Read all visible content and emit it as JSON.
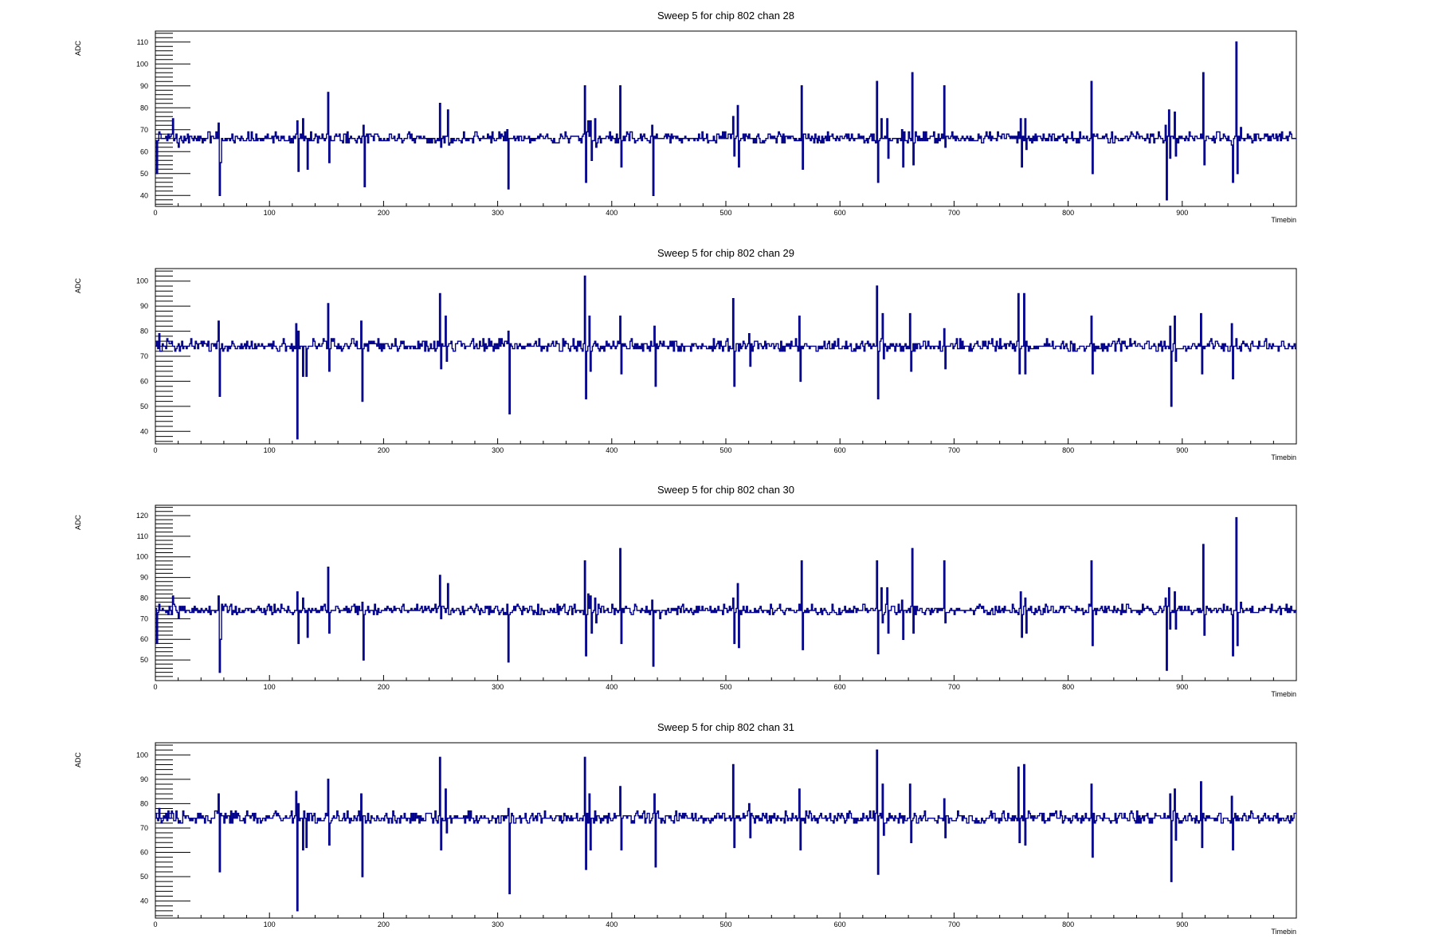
{
  "colors": {
    "trace": "#00008b",
    "frame": "#000000",
    "text": "#000000",
    "background": "#ffffff"
  },
  "chart_data": [
    {
      "type": "line",
      "title": "Sweep 5 for chip 802 chan 28",
      "xlabel": "Timebin",
      "ylabel": "ADC",
      "xlim": [
        0,
        1000
      ],
      "ylim": [
        35,
        115
      ],
      "xticks": [
        "0",
        "100",
        "200",
        "300",
        "400",
        "500",
        "600",
        "700",
        "800",
        "900"
      ],
      "yticks": [
        "40",
        "50",
        "60",
        "70",
        "80",
        "90",
        "100",
        "110"
      ],
      "baseline": 66,
      "spikes": [
        [
          1,
          50
        ],
        [
          3,
          69
        ],
        [
          15,
          75
        ],
        [
          20,
          62
        ],
        [
          55,
          73
        ],
        [
          56,
          40
        ],
        [
          57,
          55
        ],
        [
          124,
          74
        ],
        [
          125,
          51
        ],
        [
          129,
          75
        ],
        [
          133,
          52
        ],
        [
          151,
          87
        ],
        [
          152,
          55
        ],
        [
          182,
          72
        ],
        [
          183,
          44
        ],
        [
          249,
          82
        ],
        [
          250,
          62
        ],
        [
          256,
          79
        ],
        [
          257,
          63
        ],
        [
          308,
          70
        ],
        [
          309,
          43
        ],
        [
          376,
          90
        ],
        [
          377,
          46
        ],
        [
          379,
          74
        ],
        [
          381,
          74
        ],
        [
          382,
          56
        ],
        [
          385,
          75
        ],
        [
          386,
          62
        ],
        [
          407,
          90
        ],
        [
          408,
          53
        ],
        [
          435,
          72
        ],
        [
          436,
          40
        ],
        [
          442,
          66
        ],
        [
          506,
          76
        ],
        [
          507,
          58
        ],
        [
          510,
          81
        ],
        [
          511,
          53
        ],
        [
          566,
          90
        ],
        [
          567,
          52
        ],
        [
          632,
          92
        ],
        [
          633,
          46
        ],
        [
          636,
          75
        ],
        [
          637,
          66
        ],
        [
          641,
          75
        ],
        [
          642,
          57
        ],
        [
          654,
          70
        ],
        [
          655,
          53
        ],
        [
          663,
          96
        ],
        [
          664,
          54
        ],
        [
          691,
          90
        ],
        [
          692,
          62
        ],
        [
          758,
          75
        ],
        [
          759,
          53
        ],
        [
          762,
          75
        ],
        [
          763,
          61
        ],
        [
          820,
          92
        ],
        [
          821,
          50
        ],
        [
          885,
          72
        ],
        [
          886,
          38
        ],
        [
          888,
          79
        ],
        [
          889,
          57
        ],
        [
          893,
          78
        ],
        [
          894,
          58
        ],
        [
          918,
          96
        ],
        [
          919,
          54
        ],
        [
          943,
          63
        ],
        [
          944,
          46
        ],
        [
          947,
          110
        ],
        [
          948,
          50
        ],
        [
          951,
          71
        ]
      ]
    },
    {
      "type": "line",
      "title": "Sweep 5 for chip 802 chan 29",
      "xlabel": "Timebin",
      "ylabel": "ADC",
      "xlim": [
        0,
        1000
      ],
      "ylim": [
        35,
        105
      ],
      "xticks": [
        "0",
        "100",
        "200",
        "300",
        "400",
        "500",
        "600",
        "700",
        "800",
        "900"
      ],
      "yticks": [
        "40",
        "50",
        "60",
        "70",
        "80",
        "90",
        "100"
      ],
      "baseline": 74,
      "spikes": [
        [
          3,
          79
        ],
        [
          5,
          72
        ],
        [
          55,
          84
        ],
        [
          56,
          54
        ],
        [
          123,
          83
        ],
        [
          124,
          37
        ],
        [
          125,
          80
        ],
        [
          129,
          62
        ],
        [
          132,
          62
        ],
        [
          151,
          91
        ],
        [
          152,
          64
        ],
        [
          180,
          84
        ],
        [
          181,
          52
        ],
        [
          249,
          95
        ],
        [
          250,
          65
        ],
        [
          254,
          86
        ],
        [
          255,
          68
        ],
        [
          309,
          80
        ],
        [
          310,
          47
        ],
        [
          376,
          102
        ],
        [
          377,
          53
        ],
        [
          380,
          86
        ],
        [
          381,
          64
        ],
        [
          407,
          86
        ],
        [
          408,
          63
        ],
        [
          437,
          82
        ],
        [
          438,
          58
        ],
        [
          506,
          93
        ],
        [
          507,
          58
        ],
        [
          520,
          79
        ],
        [
          521,
          66
        ],
        [
          564,
          86
        ],
        [
          565,
          60
        ],
        [
          632,
          98
        ],
        [
          633,
          53
        ],
        [
          637,
          87
        ],
        [
          638,
          69
        ],
        [
          661,
          87
        ],
        [
          662,
          64
        ],
        [
          691,
          81
        ],
        [
          692,
          65
        ],
        [
          756,
          95
        ],
        [
          757,
          63
        ],
        [
          761,
          95
        ],
        [
          762,
          63
        ],
        [
          820,
          86
        ],
        [
          821,
          63
        ],
        [
          889,
          82
        ],
        [
          890,
          50
        ],
        [
          893,
          86
        ],
        [
          894,
          68
        ],
        [
          916,
          87
        ],
        [
          917,
          63
        ],
        [
          943,
          83
        ],
        [
          944,
          61
        ]
      ]
    },
    {
      "type": "line",
      "title": "Sweep 5 for chip 802 chan 30",
      "xlabel": "Timebin",
      "ylabel": "ADC",
      "xlim": [
        0,
        1000
      ],
      "ylim": [
        40,
        125
      ],
      "xticks": [
        "0",
        "100",
        "200",
        "300",
        "400",
        "500",
        "600",
        "700",
        "800",
        "900"
      ],
      "yticks": [
        "50",
        "60",
        "70",
        "80",
        "90",
        "100",
        "110",
        "120"
      ],
      "baseline": 74,
      "spikes": [
        [
          1,
          58
        ],
        [
          3,
          77
        ],
        [
          15,
          81
        ],
        [
          20,
          70
        ],
        [
          55,
          81
        ],
        [
          56,
          44
        ],
        [
          57,
          60
        ],
        [
          124,
          83
        ],
        [
          125,
          58
        ],
        [
          129,
          80
        ],
        [
          133,
          61
        ],
        [
          151,
          95
        ],
        [
          152,
          63
        ],
        [
          181,
          78
        ],
        [
          182,
          50
        ],
        [
          249,
          91
        ],
        [
          250,
          70
        ],
        [
          256,
          87
        ],
        [
          257,
          72
        ],
        [
          308,
          77
        ],
        [
          309,
          49
        ],
        [
          376,
          98
        ],
        [
          377,
          52
        ],
        [
          379,
          82
        ],
        [
          381,
          81
        ],
        [
          382,
          63
        ],
        [
          385,
          80
        ],
        [
          386,
          68
        ],
        [
          407,
          104
        ],
        [
          408,
          58
        ],
        [
          435,
          79
        ],
        [
          436,
          47
        ],
        [
          442,
          70
        ],
        [
          506,
          80
        ],
        [
          507,
          58
        ],
        [
          510,
          87
        ],
        [
          511,
          56
        ],
        [
          566,
          98
        ],
        [
          567,
          55
        ],
        [
          632,
          98
        ],
        [
          633,
          53
        ],
        [
          636,
          85
        ],
        [
          637,
          68
        ],
        [
          641,
          85
        ],
        [
          642,
          63
        ],
        [
          654,
          79
        ],
        [
          655,
          60
        ],
        [
          663,
          104
        ],
        [
          664,
          63
        ],
        [
          691,
          98
        ],
        [
          692,
          68
        ],
        [
          758,
          83
        ],
        [
          759,
          61
        ],
        [
          762,
          80
        ],
        [
          763,
          63
        ],
        [
          820,
          98
        ],
        [
          821,
          57
        ],
        [
          885,
          80
        ],
        [
          886,
          45
        ],
        [
          888,
          85
        ],
        [
          889,
          65
        ],
        [
          893,
          83
        ],
        [
          894,
          65
        ],
        [
          918,
          106
        ],
        [
          919,
          62
        ],
        [
          943,
          72
        ],
        [
          944,
          52
        ],
        [
          947,
          119
        ],
        [
          948,
          57
        ],
        [
          951,
          78
        ]
      ]
    },
    {
      "type": "line",
      "title": "Sweep 5 for chip 802 chan 31",
      "xlabel": "Timebin",
      "ylabel": "ADC",
      "xlim": [
        0,
        1000
      ],
      "ylim": [
        33,
        105
      ],
      "xticks": [
        "0",
        "100",
        "200",
        "300",
        "400",
        "500",
        "600",
        "700",
        "800",
        "900"
      ],
      "yticks": [
        "40",
        "50",
        "60",
        "70",
        "80",
        "90",
        "100"
      ],
      "baseline": 74,
      "spikes": [
        [
          3,
          78
        ],
        [
          5,
          72
        ],
        [
          55,
          84
        ],
        [
          56,
          52
        ],
        [
          123,
          85
        ],
        [
          124,
          36
        ],
        [
          125,
          80
        ],
        [
          129,
          61
        ],
        [
          132,
          62
        ],
        [
          151,
          90
        ],
        [
          152,
          63
        ],
        [
          180,
          84
        ],
        [
          181,
          50
        ],
        [
          249,
          99
        ],
        [
          250,
          61
        ],
        [
          254,
          86
        ],
        [
          255,
          68
        ],
        [
          309,
          78
        ],
        [
          310,
          43
        ],
        [
          376,
          99
        ],
        [
          377,
          53
        ],
        [
          380,
          84
        ],
        [
          381,
          61
        ],
        [
          407,
          87
        ],
        [
          408,
          61
        ],
        [
          437,
          84
        ],
        [
          438,
          54
        ],
        [
          506,
          96
        ],
        [
          507,
          62
        ],
        [
          520,
          80
        ],
        [
          521,
          66
        ],
        [
          564,
          86
        ],
        [
          565,
          61
        ],
        [
          632,
          102
        ],
        [
          633,
          51
        ],
        [
          637,
          88
        ],
        [
          638,
          67
        ],
        [
          661,
          88
        ],
        [
          662,
          64
        ],
        [
          691,
          82
        ],
        [
          692,
          66
        ],
        [
          756,
          95
        ],
        [
          757,
          64
        ],
        [
          761,
          96
        ],
        [
          762,
          63
        ],
        [
          820,
          88
        ],
        [
          821,
          58
        ],
        [
          889,
          84
        ],
        [
          890,
          48
        ],
        [
          893,
          86
        ],
        [
          894,
          65
        ],
        [
          916,
          89
        ],
        [
          917,
          62
        ],
        [
          943,
          83
        ],
        [
          944,
          61
        ]
      ]
    }
  ]
}
